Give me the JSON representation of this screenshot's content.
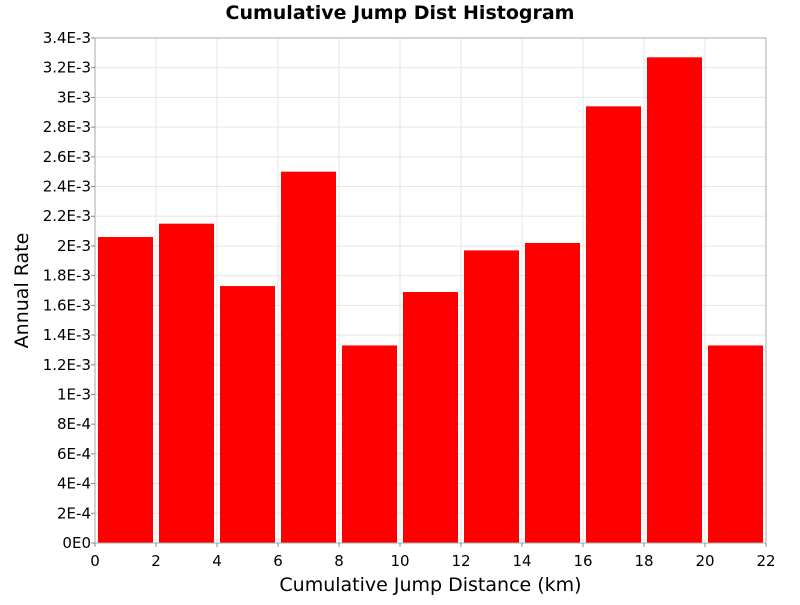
{
  "chart_data": {
    "type": "bar",
    "title": "Cumulative Jump Dist Histogram",
    "xlabel": "Cumulative Jump Distance (km)",
    "ylabel": "Annual Rate",
    "xlim": [
      0,
      22
    ],
    "ylim": [
      0,
      0.0034
    ],
    "x_ticks": [
      "0",
      "2",
      "4",
      "6",
      "8",
      "10",
      "12",
      "14",
      "16",
      "18",
      "20",
      "22"
    ],
    "y_ticks": [
      "0E0",
      "2E-4",
      "4E-4",
      "6E-4",
      "8E-4",
      "1E-3",
      "1.2E-3",
      "1.4E-3",
      "1.6E-3",
      "1.8E-3",
      "2E-3",
      "2.2E-3",
      "2.4E-3",
      "2.6E-3",
      "2.8E-3",
      "3E-3",
      "3.2E-3",
      "3.4E-3"
    ],
    "bins": [
      {
        "x0": 0,
        "x1": 2,
        "value": 0.00206
      },
      {
        "x0": 2,
        "x1": 4,
        "value": 0.00215
      },
      {
        "x0": 4,
        "x1": 6,
        "value": 0.00173
      },
      {
        "x0": 6,
        "x1": 8,
        "value": 0.0025
      },
      {
        "x0": 8,
        "x1": 10,
        "value": 0.00133
      },
      {
        "x0": 10,
        "x1": 12,
        "value": 0.00169
      },
      {
        "x0": 12,
        "x1": 14,
        "value": 0.00197
      },
      {
        "x0": 14,
        "x1": 16,
        "value": 0.00202
      },
      {
        "x0": 16,
        "x1": 18,
        "value": 0.00294
      },
      {
        "x0": 18,
        "x1": 20,
        "value": 0.00327
      },
      {
        "x0": 20,
        "x1": 22,
        "value": 0.00133
      }
    ],
    "grid": true,
    "bar_color": "#ff0000"
  }
}
